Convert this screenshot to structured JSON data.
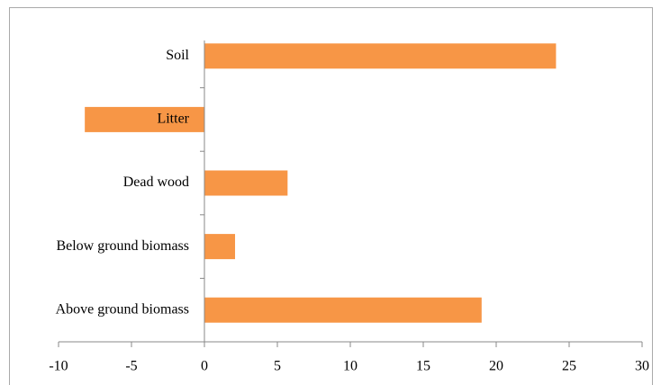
{
  "chart_data": {
    "type": "barh",
    "categories": [
      "Soil",
      "Litter",
      "Dead wood",
      "Below ground biomass",
      "Above ground biomass"
    ],
    "values": [
      24.1,
      -8.2,
      5.7,
      2.1,
      19
    ],
    "color": "#f79646",
    "xlim": [
      -10,
      30
    ],
    "xticks": [
      -10,
      -5,
      0,
      5,
      10,
      15,
      20,
      25,
      30
    ],
    "grid": false
  }
}
